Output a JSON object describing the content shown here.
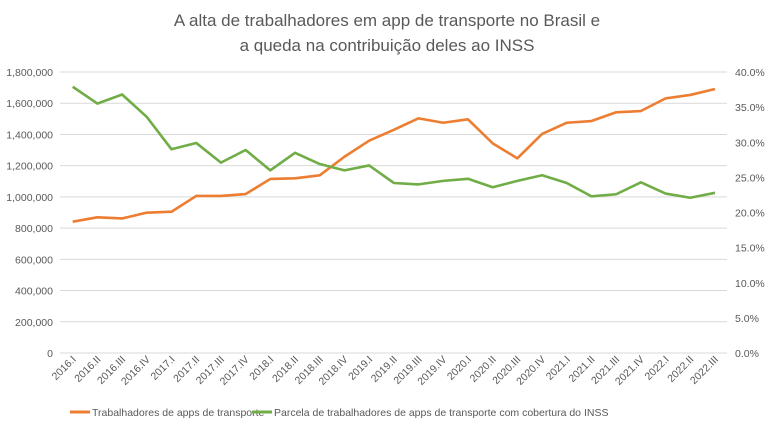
{
  "chart_data": {
    "type": "line",
    "title": [
      "A alta de trabalhadores em app de transporte no Brasil e",
      "a queda na contribuição deles ao INSS"
    ],
    "categories": [
      "2016.I",
      "2016.II",
      "2016.III",
      "2016.IV",
      "2017.I",
      "2017.II",
      "2017.III",
      "2017.IV",
      "2018.I",
      "2018.II",
      "2018.III",
      "2018.IV",
      "2019.I",
      "2019.II",
      "2019.III",
      "2019.IV",
      "2020.I",
      "2020.II",
      "2020.III",
      "2020.IV",
      "2021.I",
      "2021.II",
      "2021.III",
      "2021.IV",
      "2022.I",
      "2022.II",
      "2022.III"
    ],
    "y_left": {
      "range": [
        0,
        1800000
      ],
      "ticks": [
        "0",
        "200,000",
        "400,000",
        "600,000",
        "800,000",
        "1,000,000",
        "1,200,000",
        "1,400,000",
        "1,600,000",
        "1,800,000"
      ]
    },
    "y_right": {
      "range": [
        0,
        40
      ],
      "ticks": [
        "0.0%",
        "5.0%",
        "10.0%",
        "15.0%",
        "20.0%",
        "25.0%",
        "30.0%",
        "35.0%",
        "40.0%"
      ]
    },
    "grid": true,
    "legend_position": "bottom",
    "series": [
      {
        "name": "Trabalhadores de apps de transporte",
        "axis": "left",
        "color": "#ED7D31",
        "values": [
          841000,
          869000,
          862000,
          899000,
          905000,
          1006000,
          1006000,
          1018000,
          1115000,
          1119000,
          1138000,
          1257000,
          1360000,
          1430000,
          1503000,
          1475000,
          1497000,
          1343000,
          1247000,
          1403000,
          1475000,
          1486000,
          1542000,
          1550000,
          1631000,
          1653000,
          1691000
        ]
      },
      {
        "name": "Parcela de trabalhadores de apps de transporte com cobertura do  INSS",
        "axis": "right",
        "color": "#70AD47",
        "values": [
          37.9,
          35.5,
          36.8,
          33.6,
          29.0,
          29.9,
          27.1,
          28.9,
          26.0,
          28.5,
          26.9,
          26.0,
          26.7,
          24.2,
          24.0,
          24.5,
          24.8,
          23.6,
          24.5,
          25.3,
          24.2,
          22.3,
          22.6,
          24.3,
          22.7,
          22.1,
          22.8
        ]
      }
    ]
  }
}
